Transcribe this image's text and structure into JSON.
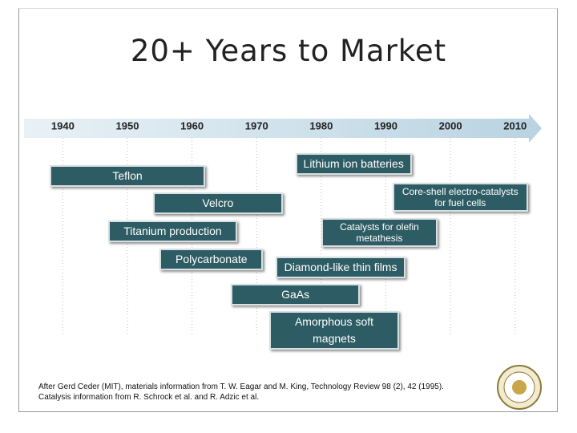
{
  "chart_data": {
    "type": "timeline",
    "title": "20+ Years to Market",
    "xlim": [
      1934,
      2014
    ],
    "xticks": [
      1940,
      1950,
      1960,
      1970,
      1980,
      1990,
      2000,
      2010
    ],
    "color": "#2d5c64",
    "grid": true,
    "items": [
      {
        "label": "Teflon",
        "start": 1938,
        "end": 1962
      },
      {
        "label": "Velcro",
        "start": 1954,
        "end": 1974
      },
      {
        "label": "Titanium production",
        "start": 1947,
        "end": 1967
      },
      {
        "label": "Polycarbonate",
        "start": 1955,
        "end": 1971
      },
      {
        "label": "Lithium ion batteries",
        "start": 1976,
        "end": 1994
      },
      {
        "label": "Core-shell electro-catalysts for fuel cells",
        "start": 1991,
        "end": 2012
      },
      {
        "label": "Catalysts for olefin metathesis",
        "start": 1980,
        "end": 1998
      },
      {
        "label": "Diamond-like thin films",
        "start": 1973,
        "end": 1993
      },
      {
        "label": "GaAs",
        "start": 1966,
        "end": 1986
      },
      {
        "label": "Amorphous soft magnets",
        "start": 1972,
        "end": 1992
      }
    ],
    "notes": [
      "After Gerd Ceder (MIT), materials information from T. W. Eagar and M. King, Technology Review 98 (2), 42 (1995).",
      "Catalysis information from R. Schrock et al. and R. Adzic et al."
    ]
  }
}
